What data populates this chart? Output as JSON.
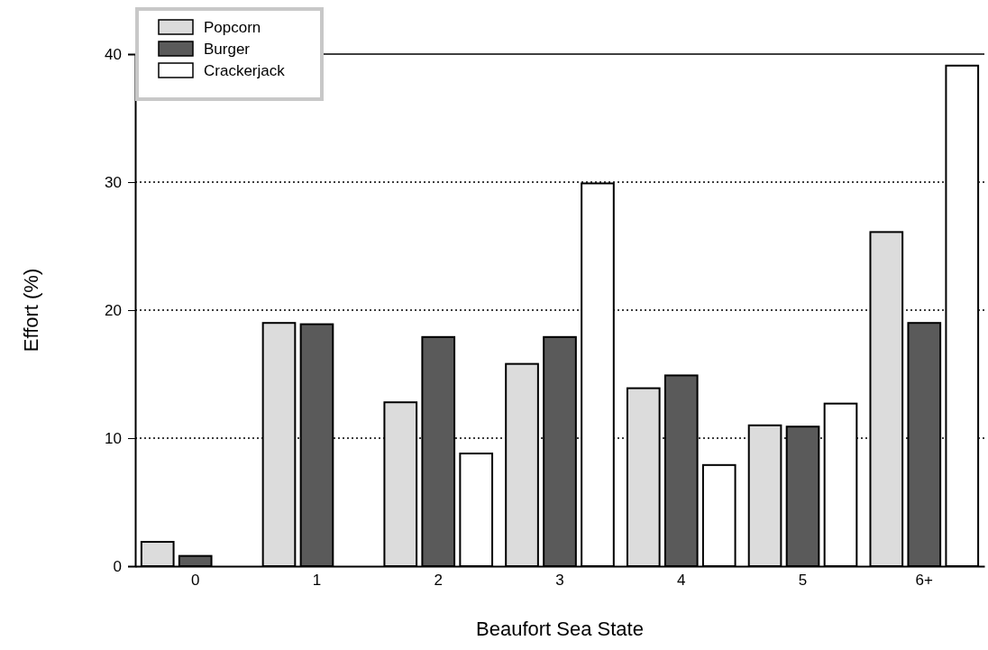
{
  "chart_data": {
    "type": "bar",
    "xlabel": "Beaufort Sea State",
    "ylabel": "Effort (%)",
    "categories": [
      "0",
      "1",
      "2",
      "3",
      "4",
      "5",
      "6+"
    ],
    "series": [
      {
        "name": "Popcorn",
        "color": "#dcdcdc",
        "values": [
          1.9,
          19,
          12.8,
          15.8,
          13.9,
          11,
          26.1
        ]
      },
      {
        "name": "Burger",
        "color": "#5a5a5a",
        "values": [
          0.8,
          18.9,
          17.9,
          17.9,
          14.9,
          10.9,
          19
        ]
      },
      {
        "name": "Crackerjack",
        "color": "#ffffff",
        "values": [
          0,
          0,
          8.8,
          29.9,
          7.9,
          12.7,
          39.1
        ]
      }
    ],
    "ylim": [
      0,
      40
    ],
    "yticks": [
      0,
      10,
      20,
      30,
      40
    ],
    "grid": "y",
    "legend": "top left"
  }
}
